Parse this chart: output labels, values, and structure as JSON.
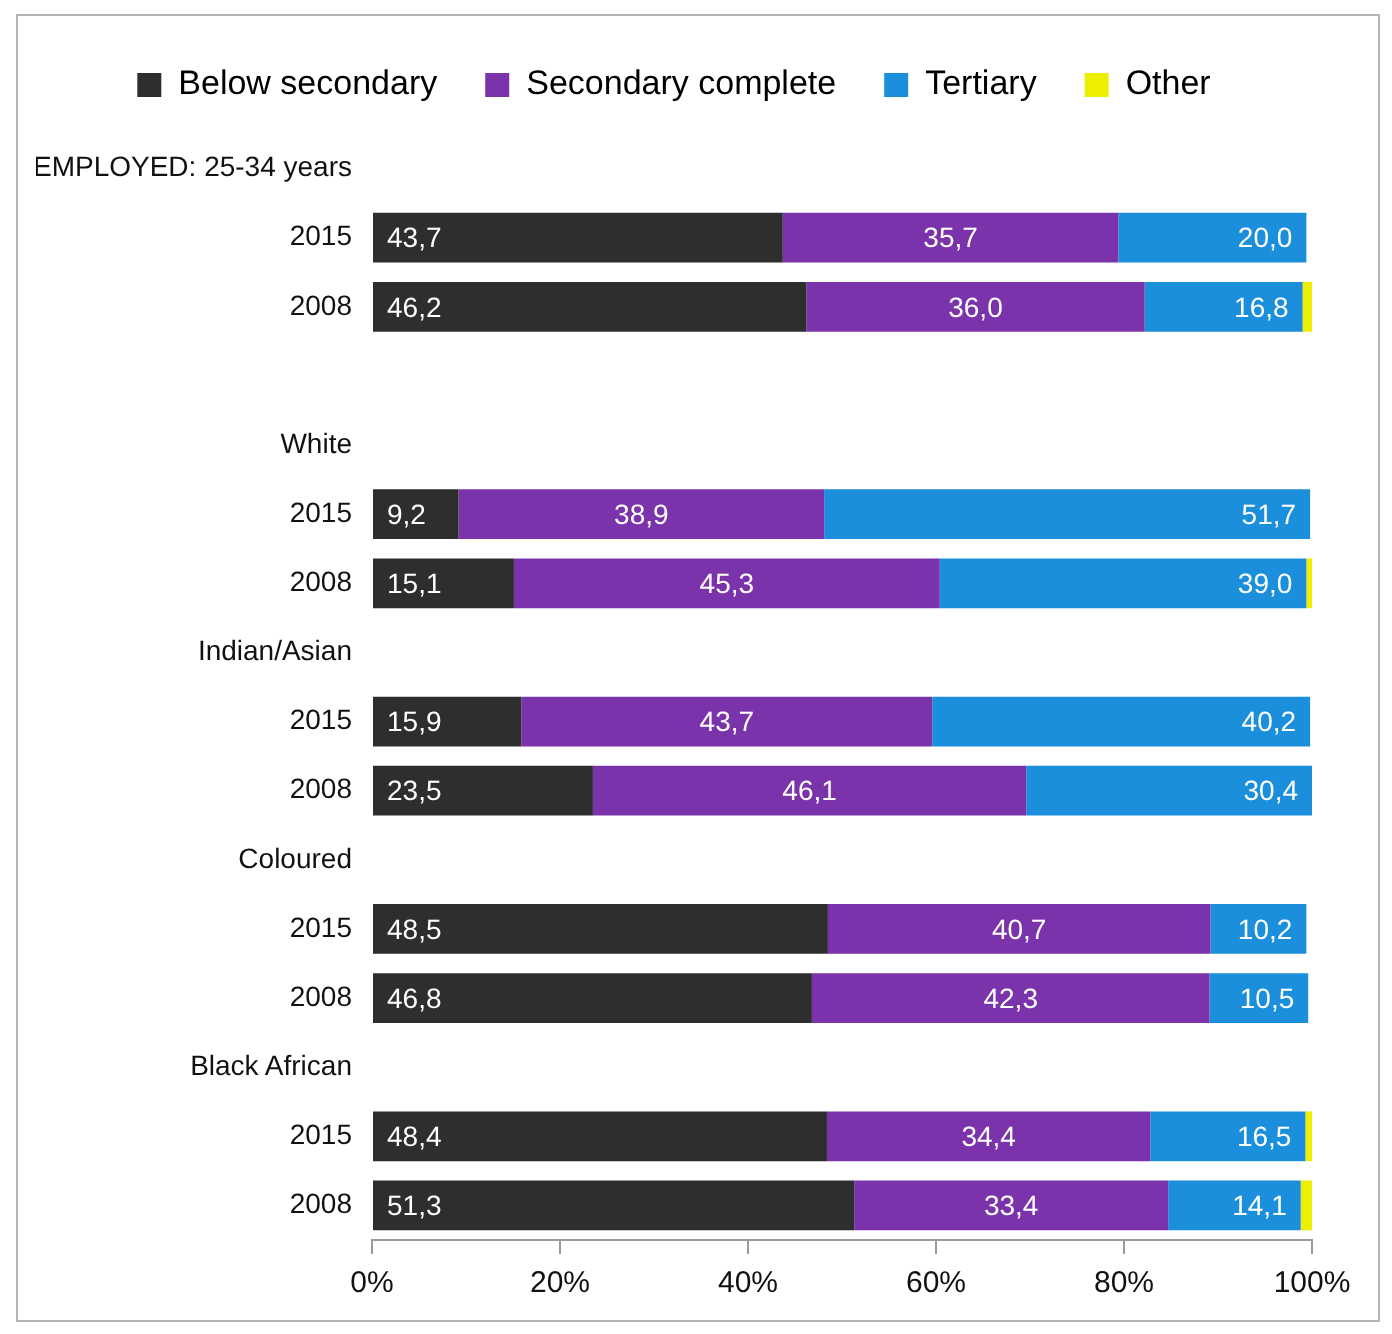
{
  "chart_data": {
    "type": "bar",
    "orientation": "horizontal",
    "stacked": true,
    "categories": [
      "EMPLOYED: 25-34 years",
      "2015",
      "2008",
      null,
      "White",
      "2015",
      "2008",
      "Indian/Asian",
      "2015",
      "2008",
      "Coloured",
      "2015",
      "2008",
      "Black African",
      "2015",
      "2008"
    ],
    "series": [
      {
        "name": "Below secondary",
        "color": "#2e2e2e",
        "values": [
          null,
          43.7,
          46.2,
          null,
          null,
          9.2,
          15.1,
          null,
          15.9,
          23.5,
          null,
          48.5,
          46.8,
          null,
          48.4,
          51.3
        ],
        "value_labels": [
          null,
          "43,7",
          "46,2",
          null,
          null,
          "9,2",
          "15,1",
          null,
          "15,9",
          "23,5",
          null,
          "48,5",
          "46,8",
          null,
          "48,4",
          "51,3"
        ]
      },
      {
        "name": "Secondary complete",
        "color": "#7a33aa",
        "values": [
          null,
          35.7,
          36.0,
          null,
          null,
          38.9,
          45.3,
          null,
          43.7,
          46.1,
          null,
          40.7,
          42.3,
          null,
          34.4,
          33.4
        ],
        "value_labels": [
          null,
          "35,7",
          "36,0",
          null,
          null,
          "38,9",
          "45,3",
          null,
          "43,7",
          "46,1",
          null,
          "40,7",
          "42,3",
          null,
          "34,4",
          "33,4"
        ]
      },
      {
        "name": "Tertiary",
        "color": "#1b8fdc",
        "values": [
          null,
          20.0,
          16.8,
          null,
          null,
          51.7,
          39.0,
          null,
          40.2,
          30.4,
          null,
          10.2,
          10.5,
          null,
          16.5,
          14.1
        ],
        "value_labels": [
          null,
          "20,0",
          "16,8",
          null,
          null,
          "51,7",
          "39,0",
          null,
          "40,2",
          "30,4",
          null,
          "10,2",
          "10,5",
          null,
          "16,5",
          "14,1"
        ]
      },
      {
        "name": "Other",
        "color": "#eeee00",
        "values": [
          null,
          null,
          1.0,
          null,
          null,
          null,
          0.6,
          null,
          null,
          null,
          null,
          null,
          null,
          null,
          0.7,
          1.2
        ]
      }
    ],
    "xlim": [
      0,
      100
    ],
    "xticks": [
      {
        "value": 0,
        "label": "0%"
      },
      {
        "value": 20,
        "label": "20%"
      },
      {
        "value": 40,
        "label": "40%"
      },
      {
        "value": 60,
        "label": "60%"
      },
      {
        "value": 80,
        "label": "80%"
      },
      {
        "value": 100,
        "label": "100%"
      }
    ],
    "grid": false,
    "legend": "top"
  }
}
